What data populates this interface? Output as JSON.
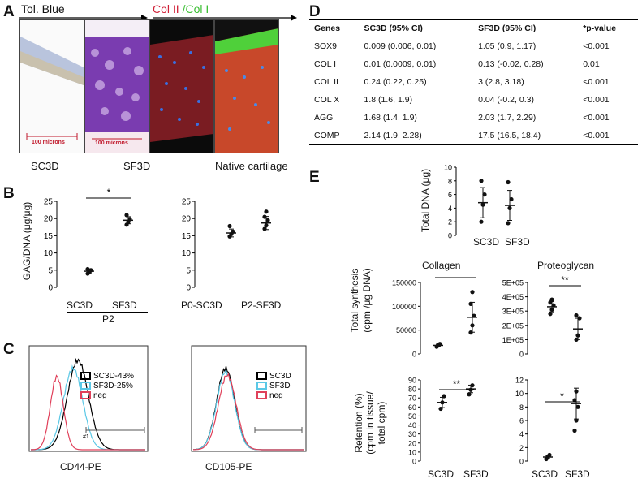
{
  "panelA": {
    "letter": "A",
    "stain1": "Tol. Blue",
    "stain2_a": "Col II",
    "stain2_b": "/Col I",
    "scale1": "100 microns",
    "scale2": "100 microns",
    "label_sc3d": "SC3D",
    "label_sf3d": "SF3D",
    "label_native": "Native cartilage"
  },
  "panelB": {
    "letter": "B",
    "ylabel": "GAG/DNA (μg/μg)",
    "left": {
      "yticks": [
        "0",
        "5",
        "10",
        "15",
        "20",
        "25"
      ],
      "categories": [
        "SC3D",
        "SF3D"
      ],
      "group": "P2",
      "star": "*",
      "chart_data": {
        "type": "scatter",
        "categories": [
          "SC3D",
          "SF3D"
        ],
        "means": [
          4.7,
          19.5
        ],
        "points": [
          [
            4.0,
            4.5,
            5.0,
            5.3
          ],
          [
            18.2,
            19.0,
            19.8,
            21.0
          ]
        ],
        "ylim": [
          0,
          25
        ]
      }
    },
    "right": {
      "yticks": [
        "0",
        "5",
        "10",
        "15",
        "20",
        "25"
      ],
      "categories": [
        "P0-SC3D",
        "P2-SF3D"
      ],
      "chart_data": {
        "type": "scatter",
        "categories": [
          "P0-SC3D",
          "P2-SF3D"
        ],
        "means": [
          15.8,
          18.7
        ],
        "points": [
          [
            14.8,
            15.5,
            16.2,
            17.8
          ],
          [
            17.0,
            18.0,
            19.5,
            20.5,
            22.0
          ]
        ],
        "ylim": [
          0,
          25
        ]
      }
    }
  },
  "panelC": {
    "letter": "C",
    "left": {
      "xlabel": "CD44-PE",
      "legend": [
        "SC3D-43%",
        "SF3D-25%",
        "neg"
      ],
      "gate": "#1"
    },
    "right": {
      "xlabel": "CD105-PE",
      "legend": [
        "SC3D",
        "SF3D",
        "neg"
      ]
    },
    "colors": {
      "sc3d": "#000000",
      "sf3d": "#5bc8e6",
      "neg": "#e0405a"
    }
  },
  "panelD": {
    "letter": "D",
    "headers": [
      "Genes",
      "SC3D (95%  CI)",
      "SF3D (95%  CI)",
      "*p-value"
    ],
    "rows": [
      [
        "SOX9",
        "0.009 (0.006, 0.01)",
        "1.05 (0.9, 1.17)",
        "<0.001"
      ],
      [
        "COL I",
        "0.01 (0.0009, 0.01)",
        "0.13 (-0.02, 0.28)",
        "0.01"
      ],
      [
        "COL II",
        "0.24 (0.22, 0.25)",
        "3 (2.8, 3.18)",
        "<0.001"
      ],
      [
        "COL X",
        "1.8 (1.6, 1.9)",
        "0.04 (-0.2, 0.3)",
        "<0.001"
      ],
      [
        "AGG",
        "1.68 (1.4, 1.9)",
        "2.03 (1.7, 2.29)",
        "<0.001"
      ],
      [
        "COMP",
        "2.14 (1.9, 2.28)",
        "17.5 (16.5, 18.4)",
        "<0.001"
      ]
    ]
  },
  "panelE": {
    "letter": "E",
    "dna": {
      "ylabel": "Total DNA (μg)",
      "yticks": [
        "0",
        "2",
        "4",
        "6",
        "8",
        "10"
      ],
      "categories": [
        "SC3D",
        "SF3D"
      ],
      "chart_data": {
        "type": "scatter",
        "categories": [
          "SC3D",
          "SF3D"
        ],
        "means": [
          4.8,
          4.4
        ],
        "points": [
          [
            2.0,
            4.5,
            6.0,
            8.0
          ],
          [
            1.8,
            4.0,
            5.3,
            7.8
          ]
        ],
        "ylim": [
          0,
          10
        ]
      }
    },
    "collagen": {
      "title": "Collagen",
      "yticks": [
        "0",
        "50000",
        "100000",
        "150000"
      ],
      "star": "*",
      "chart_data": {
        "type": "scatter",
        "categories": [
          "SC3D",
          "SF3D"
        ],
        "means": [
          18000,
          77000
        ],
        "points": [
          [
            15000,
            18000,
            21000
          ],
          [
            45000,
            60000,
            80000,
            105000,
            130000
          ]
        ],
        "ylim": [
          0,
          150000
        ]
      }
    },
    "proteoglycan": {
      "title": "Proteoglycan",
      "yticks": [
        "0",
        "1E+05",
        "2E+05",
        "3E+05",
        "4E+05",
        "5E+05"
      ],
      "star": "**",
      "chart_data": {
        "type": "scatter",
        "categories": [
          "SC3D",
          "SF3D"
        ],
        "means": [
          330000,
          175000
        ],
        "points": [
          [
            280000,
            310000,
            340000,
            360000,
            380000
          ],
          [
            100000,
            130000,
            250000,
            270000
          ]
        ],
        "ylim": [
          0,
          500000
        ]
      }
    },
    "synthesis_ylabel_1": "Total synthesis",
    "synthesis_ylabel_2": "(cpm /μg DNA)",
    "retention_ylabel_1": "Retention (%)",
    "retention_ylabel_2": "(cpm in tissue/",
    "retention_ylabel_3": "total cpm)",
    "ret_collagen": {
      "yticks": [
        "0",
        "10",
        "20",
        "30",
        "40",
        "50",
        "60",
        "70",
        "80",
        "90"
      ],
      "categories": [
        "SC3D",
        "SF3D"
      ],
      "star": "**",
      "chart_data": {
        "type": "scatter",
        "categories": [
          "SC3D",
          "SF3D"
        ],
        "means": [
          65,
          80
        ],
        "points": [
          [
            58,
            65,
            72
          ],
          [
            74,
            79,
            84
          ]
        ],
        "ylim": [
          0,
          90
        ]
      }
    },
    "ret_proteo": {
      "yticks": [
        "0",
        "2",
        "4",
        "6",
        "8",
        "10",
        "12"
      ],
      "categories": [
        "SC3D",
        "SF3D"
      ],
      "star": "*",
      "chart_data": {
        "type": "scatter",
        "categories": [
          "SC3D",
          "SF3D"
        ],
        "means": [
          0.6,
          8.5
        ],
        "points": [
          [
            0.3,
            0.6,
            0.9
          ],
          [
            4.5,
            6.0,
            8.0,
            9.0,
            10.3
          ]
        ],
        "ylim": [
          0,
          12
        ]
      }
    }
  }
}
